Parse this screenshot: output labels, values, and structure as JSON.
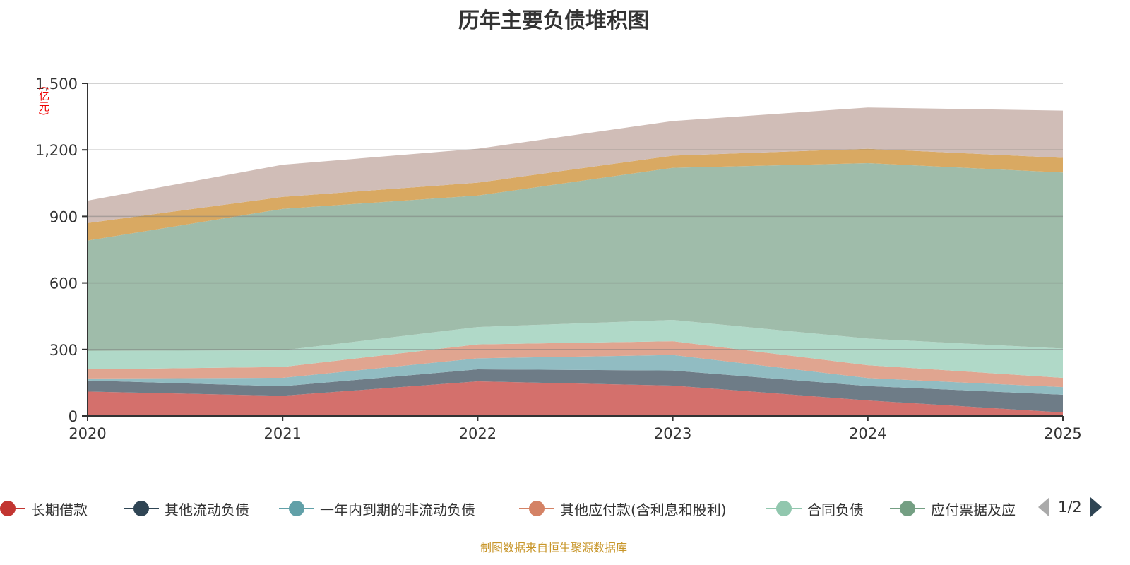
{
  "title": "历年主要负债堆积图",
  "footer": "制图数据来自恒生聚源数据库",
  "legend_pager": "1/2",
  "chart_data": {
    "type": "area",
    "stacked": true,
    "title": "历年主要负债堆积图",
    "ylabel": "(亿元)",
    "xlabel": "",
    "categories": [
      "2020",
      "2021",
      "2022",
      "2023",
      "2024",
      "2025"
    ],
    "ylim": [
      0,
      1500
    ],
    "yticks": [
      "0",
      "300",
      "600",
      "900",
      "1,200",
      "1,500"
    ],
    "ytick_values": [
      0,
      300,
      600,
      900,
      1200,
      1500
    ],
    "grid": true,
    "legend_position": "bottom",
    "series": [
      {
        "name": "长期借款",
        "color": "#c23531",
        "fill": "#d4706c",
        "values": [
          110,
          91,
          156,
          137,
          70,
          16
        ]
      },
      {
        "name": "其他流动负债",
        "color": "#2f4554",
        "fill": "#6e7c87",
        "values": [
          50,
          43,
          54,
          68,
          65,
          80
        ]
      },
      {
        "name": "一年内到期的非流动负债",
        "color": "#61a0a8",
        "fill": "#91bcc2",
        "values": [
          9,
          38,
          50,
          70,
          36,
          34
        ]
      },
      {
        "name": "其他应付款(含利息和股利)",
        "color": "#d48265",
        "fill": "#e0a590",
        "values": [
          41,
          49,
          63,
          62,
          58,
          42
        ]
      },
      {
        "name": "合同负债",
        "color": "#91c7ae",
        "fill": "#b0d9c8",
        "values": [
          83,
          75,
          78,
          96,
          120,
          132
        ]
      },
      {
        "name": "应付票据及应",
        "color": "#749f83",
        "fill": "#9fbcaa",
        "values": [
          498,
          638,
          593,
          686,
          791,
          794
        ]
      },
      {
        "color": "#ca8622",
        "fill": "#d9a962",
        "values": [
          79,
          54,
          58,
          55,
          65,
          66
        ]
      },
      {
        "color": "#bda29a",
        "fill": "#d0bdb7",
        "values": [
          101,
          145,
          153,
          156,
          186,
          213
        ]
      }
    ]
  }
}
